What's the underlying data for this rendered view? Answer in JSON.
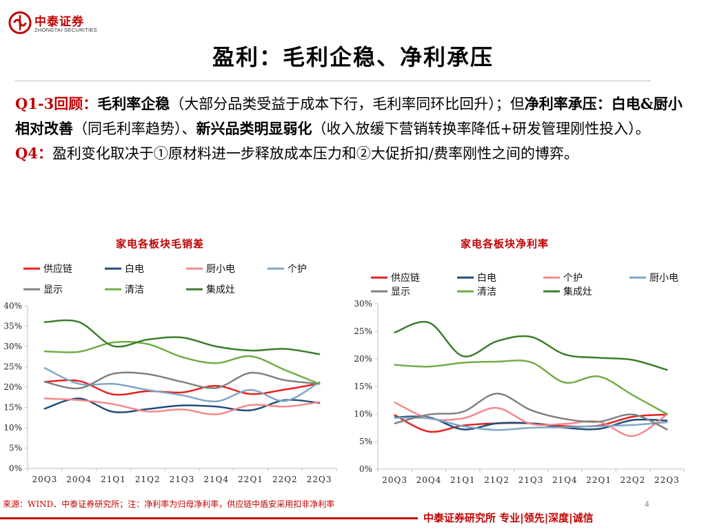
{
  "header": {
    "logo_cn": "中泰证券",
    "logo_en": "ZHONGTAI SECURITIES"
  },
  "title": "盈利：毛利企稳、净利承压",
  "body": {
    "p1_label": "Q1-3回顾：",
    "p1_b1": "毛利率企稳",
    "p1_t1": "（大部分品类受益于成本下行，毛利率同环比回升）；但",
    "p1_b2": "净利率承压：白电&厨小相对改善",
    "p1_t2": "（同毛利率趋势）、",
    "p1_b3": "新兴品类明显弱化",
    "p1_t3": "（收入放缓下营销转换率降低+研发管理刚性投入）。",
    "p2_label": "Q4：",
    "p2_text": "盈利变化取决于①原材料进一步释放成本压力和②大促折扣/费率刚性之间的博弈。"
  },
  "chart_data": [
    {
      "type": "line",
      "title": "家电各板块毛销差",
      "categories": [
        "20Q3",
        "20Q4",
        "21Q1",
        "21Q2",
        "21Q3",
        "21Q4",
        "22Q1",
        "22Q2",
        "22Q3"
      ],
      "ylim": [
        0,
        40
      ],
      "yticks": [
        0,
        5,
        10,
        15,
        20,
        25,
        30,
        35,
        40
      ],
      "y_suffix": "%",
      "legend_rows": [
        [
          "供应链",
          "白电",
          "厨小电",
          "个护"
        ],
        [
          "显示",
          "清洁",
          "集成灶"
        ]
      ],
      "series": [
        {
          "name": "供应链",
          "color": "#e8201c",
          "values": [
            21.3,
            21.5,
            18.2,
            19.0,
            18.7,
            20.3,
            18.3,
            19.4,
            20.9
          ]
        },
        {
          "name": "白电",
          "color": "#1f4e79",
          "values": [
            14.7,
            17.2,
            13.9,
            14.6,
            15.5,
            15.2,
            14.3,
            16.8,
            16.1
          ]
        },
        {
          "name": "厨小电",
          "color": "#f4888a",
          "values": [
            17.2,
            16.8,
            15.8,
            14.0,
            14.5,
            13.3,
            15.6,
            15.2,
            16.3
          ]
        },
        {
          "name": "个护",
          "color": "#7ea6c6",
          "values": [
            24.7,
            20.8,
            20.8,
            19.3,
            18.0,
            16.5,
            19.3,
            16.6,
            21.2
          ]
        },
        {
          "name": "显示",
          "color": "#808080",
          "values": [
            21.3,
            19.7,
            23.3,
            23.2,
            21.3,
            19.8,
            23.5,
            21.7,
            20.8
          ]
        },
        {
          "name": "清洁",
          "color": "#70ad47",
          "values": [
            28.8,
            28.7,
            31.0,
            30.6,
            27.4,
            25.9,
            27.6,
            24.2,
            20.8
          ]
        },
        {
          "name": "集成灶",
          "color": "#3a7d2c",
          "values": [
            36.0,
            36.0,
            30.1,
            31.7,
            32.2,
            30.0,
            29.0,
            29.4,
            28.1
          ]
        }
      ]
    },
    {
      "type": "line",
      "title": "家电各板块净利率",
      "categories": [
        "20Q3",
        "20Q4",
        "21Q1",
        "21Q2",
        "21Q3",
        "21Q4",
        "22Q1",
        "22Q2",
        "22Q3"
      ],
      "ylim": [
        0,
        30
      ],
      "yticks": [
        0,
        5,
        10,
        15,
        20,
        25,
        30
      ],
      "y_suffix": "%",
      "legend_rows": [
        [
          "供应链",
          "白电",
          "个护",
          "厨小电"
        ],
        [
          "显示",
          "清洁",
          "集成灶"
        ]
      ],
      "series": [
        {
          "name": "供应链",
          "color": "#e8201c",
          "values": [
            9.8,
            6.8,
            7.9,
            8.3,
            8.3,
            7.8,
            7.9,
            9.5,
            9.9
          ]
        },
        {
          "name": "白电",
          "color": "#1f4e79",
          "values": [
            9.4,
            9.4,
            7.2,
            8.3,
            8.3,
            7.5,
            7.3,
            8.9,
            8.8
          ]
        },
        {
          "name": "个护",
          "color": "#f4888a",
          "values": [
            12.1,
            9.2,
            9.2,
            11.1,
            8.2,
            8.2,
            8.6,
            6.0,
            9.9
          ]
        },
        {
          "name": "厨小电",
          "color": "#7ea6c6",
          "values": [
            9.3,
            9.2,
            7.8,
            7.1,
            7.5,
            7.6,
            7.8,
            8.0,
            8.5
          ]
        },
        {
          "name": "显示",
          "color": "#808080",
          "values": [
            8.3,
            9.9,
            10.4,
            13.7,
            10.7,
            9.1,
            8.6,
            9.9,
            7.2
          ]
        },
        {
          "name": "清洁",
          "color": "#70ad47",
          "values": [
            18.9,
            18.6,
            19.3,
            19.5,
            19.4,
            15.7,
            16.8,
            13.4,
            10.0
          ]
        },
        {
          "name": "集成灶",
          "color": "#3a7d2c",
          "values": [
            24.8,
            26.6,
            20.5,
            23.2,
            24.0,
            20.8,
            20.2,
            19.8,
            18.0
          ]
        }
      ]
    }
  ],
  "source_note": "来源：WIND、中泰证券研究所；注：净利率为归母净利率，供应链中盾安采用扣非净利率",
  "page_number": "4",
  "footer": "中泰证券研究所 专业|领先|深度|诚信"
}
